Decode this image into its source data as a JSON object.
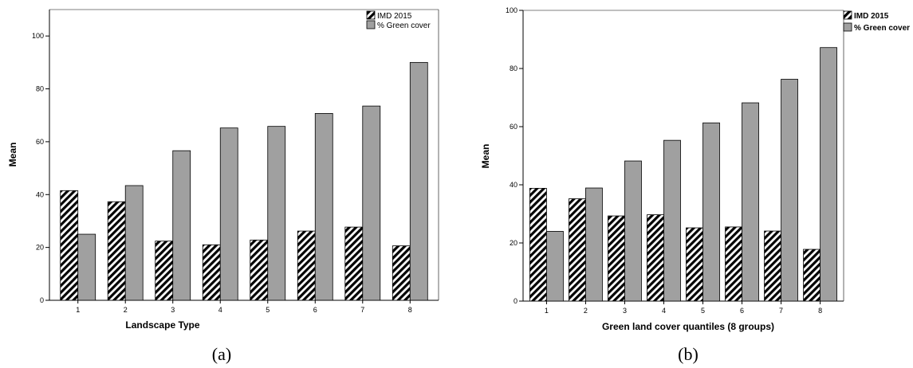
{
  "chart_data": [
    {
      "type": "bar",
      "panel_label": "(a)",
      "categories": [
        "1",
        "2",
        "3",
        "4",
        "5",
        "6",
        "7",
        "8"
      ],
      "series": [
        {
          "name": "IMD 2015",
          "values": [
            41.5,
            37.3,
            22.4,
            21.0,
            22.8,
            26.2,
            27.7,
            20.6
          ],
          "color": "#000000",
          "pattern": "diagonal-hatch"
        },
        {
          "name": "% Green cover",
          "values": [
            25.0,
            43.4,
            56.6,
            65.2,
            65.8,
            70.7,
            73.5,
            90.0
          ],
          "color": "#a0a0a0"
        }
      ],
      "title": "",
      "xlabel": "Landscape Type",
      "ylabel": "Mean",
      "ylim": [
        0,
        110
      ],
      "yticks": [
        "0",
        "20",
        "40",
        "60",
        "80",
        "100"
      ],
      "grid": false,
      "legend": "top-right"
    },
    {
      "type": "bar",
      "panel_label": "(b)",
      "categories": [
        "1",
        "2",
        "3",
        "4",
        "5",
        "6",
        "7",
        "8"
      ],
      "series": [
        {
          "name": "IMD 2015",
          "values": [
            38.8,
            35.2,
            29.3,
            29.7,
            25.2,
            25.5,
            24.1,
            17.8
          ],
          "color": "#000000",
          "pattern": "diagonal-hatch"
        },
        {
          "name": "% Green cover",
          "values": [
            24.0,
            38.9,
            48.2,
            55.3,
            61.3,
            68.2,
            76.3,
            87.2
          ],
          "color": "#a0a0a0"
        }
      ],
      "title": "",
      "xlabel": "Green land cover quantiles (8 groups)",
      "ylabel": "Mean",
      "ylim": [
        0,
        100
      ],
      "yticks": [
        "0",
        "20",
        "40",
        "60",
        "80",
        "100"
      ],
      "grid": false,
      "legend": "top-right"
    }
  ]
}
